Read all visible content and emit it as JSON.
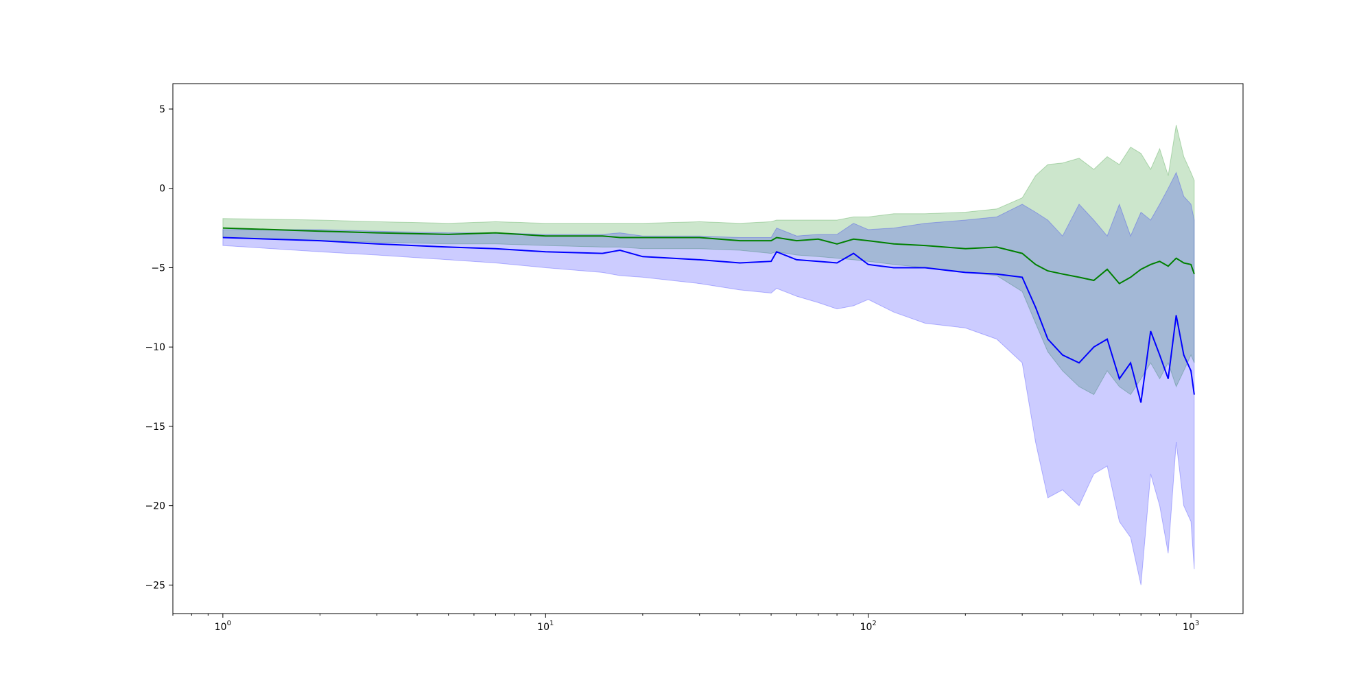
{
  "chart_data": {
    "type": "line",
    "title": "",
    "xlabel": "",
    "ylabel": "",
    "xscale": "log",
    "xlim": [
      0.7,
      1450
    ],
    "ylim": [
      -26.8,
      6.6
    ],
    "grid": false,
    "legend": "none",
    "x_ticks": [
      {
        "value": 1,
        "base": "10",
        "exp": "0"
      },
      {
        "value": 10,
        "base": "10",
        "exp": "1"
      },
      {
        "value": 100,
        "base": "10",
        "exp": "2"
      },
      {
        "value": 1000,
        "base": "10",
        "exp": "3"
      }
    ],
    "y_ticks": [
      {
        "value": 5,
        "label": "5"
      },
      {
        "value": 0,
        "label": "0"
      },
      {
        "value": -5,
        "label": "−5"
      },
      {
        "value": -10,
        "label": "−10"
      },
      {
        "value": -15,
        "label": "−15"
      },
      {
        "value": -20,
        "label": "−20"
      },
      {
        "value": -25,
        "label": "−25"
      }
    ],
    "x": [
      1,
      2,
      3,
      5,
      7,
      10,
      15,
      17,
      20,
      30,
      40,
      50,
      52,
      60,
      70,
      80,
      90,
      100,
      120,
      150,
      200,
      250,
      300,
      330,
      360,
      400,
      450,
      500,
      550,
      600,
      650,
      700,
      750,
      800,
      850,
      900,
      950,
      1000,
      1024
    ],
    "series": [
      {
        "color": "#008000",
        "band_color": "#008000",
        "mean": [
          -2.5,
          -2.7,
          -2.8,
          -2.9,
          -2.8,
          -3.0,
          -3.0,
          -3.1,
          -3.1,
          -3.1,
          -3.3,
          -3.3,
          -3.1,
          -3.3,
          -3.2,
          -3.5,
          -3.2,
          -3.3,
          -3.5,
          -3.6,
          -3.8,
          -3.7,
          -4.1,
          -4.8,
          -5.2,
          -5.4,
          -5.6,
          -5.8,
          -5.1,
          -6.0,
          -5.6,
          -5.1,
          -4.8,
          -4.6,
          -4.9,
          -4.4,
          -4.7,
          -4.8,
          -5.4
        ],
        "upper": [
          -1.9,
          -2.0,
          -2.1,
          -2.2,
          -2.1,
          -2.2,
          -2.2,
          -2.2,
          -2.2,
          -2.1,
          -2.2,
          -2.1,
          -2.0,
          -2.0,
          -2.0,
          -2.0,
          -1.8,
          -1.8,
          -1.6,
          -1.6,
          -1.5,
          -1.3,
          -0.6,
          0.8,
          1.5,
          1.6,
          1.9,
          1.2,
          2.0,
          1.5,
          2.6,
          2.2,
          1.2,
          2.5,
          0.8,
          4.0,
          2.0,
          1.0,
          0.5
        ],
        "lower": [
          -3.1,
          -3.3,
          -3.4,
          -3.5,
          -3.5,
          -3.6,
          -3.7,
          -3.7,
          -3.8,
          -3.8,
          -3.9,
          -4.1,
          -4.0,
          -4.2,
          -4.3,
          -4.4,
          -4.5,
          -4.6,
          -4.8,
          -5.0,
          -5.3,
          -5.5,
          -6.5,
          -8.5,
          -10.3,
          -11.5,
          -12.5,
          -13.0,
          -11.5,
          -12.5,
          -13.0,
          -12.0,
          -11.0,
          -12.0,
          -11.0,
          -12.5,
          -11.5,
          -10.5,
          -11.0
        ]
      },
      {
        "color": "#0000ff",
        "band_color": "#0000ff",
        "mean": [
          -3.1,
          -3.3,
          -3.5,
          -3.7,
          -3.8,
          -4.0,
          -4.1,
          -3.9,
          -4.3,
          -4.5,
          -4.7,
          -4.6,
          -4.0,
          -4.5,
          -4.6,
          -4.7,
          -4.1,
          -4.8,
          -5.0,
          -5.0,
          -5.3,
          -5.4,
          -5.6,
          -7.5,
          -9.5,
          -10.5,
          -11.0,
          -10.0,
          -9.5,
          -12.0,
          -11.0,
          -13.5,
          -9.0,
          -10.5,
          -12.0,
          -8.0,
          -10.5,
          -11.5,
          -13.0
        ],
        "upper": [
          -2.6,
          -2.6,
          -2.7,
          -2.8,
          -2.8,
          -2.9,
          -2.9,
          -2.8,
          -3.0,
          -3.0,
          -3.1,
          -3.1,
          -2.5,
          -3.0,
          -2.9,
          -2.9,
          -2.2,
          -2.6,
          -2.5,
          -2.2,
          -2.0,
          -1.8,
          -1.0,
          -1.5,
          -2.0,
          -3.0,
          -1.0,
          -2.0,
          -3.0,
          -1.0,
          -3.0,
          -1.5,
          -2.0,
          -1.0,
          0.0,
          1.0,
          -0.5,
          -1.0,
          -2.0
        ],
        "lower": [
          -3.6,
          -4.0,
          -4.2,
          -4.5,
          -4.7,
          -5.0,
          -5.3,
          -5.5,
          -5.6,
          -6.0,
          -6.4,
          -6.6,
          -6.3,
          -6.8,
          -7.2,
          -7.6,
          -7.4,
          -7.0,
          -7.8,
          -8.5,
          -8.8,
          -9.5,
          -11.0,
          -16.0,
          -19.5,
          -19.0,
          -20.0,
          -18.0,
          -17.5,
          -21.0,
          -22.0,
          -25.0,
          -18.0,
          -20.0,
          -23.0,
          -16.0,
          -20.0,
          -21.0,
          -24.0
        ]
      }
    ]
  }
}
